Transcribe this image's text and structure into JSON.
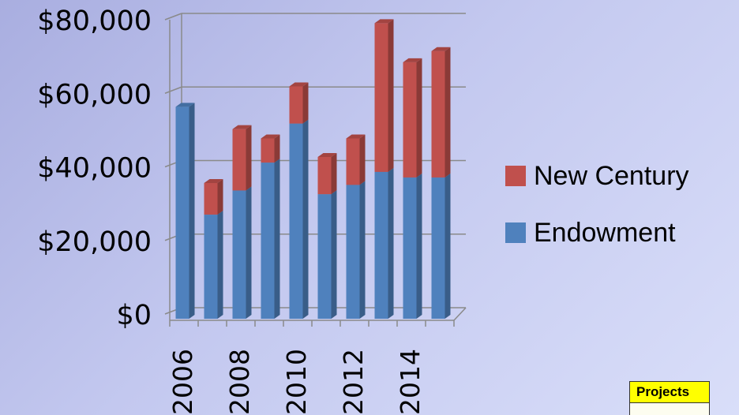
{
  "chart_data": {
    "type": "bar",
    "stacked": true,
    "three_d": true,
    "x": [
      2006,
      2007,
      2008,
      2009,
      2010,
      2011,
      2012,
      2013,
      2014,
      2015
    ],
    "x_tick_labels": [
      "2006",
      "2008",
      "2010",
      "2012",
      "2014"
    ],
    "y_tick_labels": [
      "$0",
      "$20,000",
      "$40,000",
      "$60,000",
      "$80,000"
    ],
    "ylim": [
      0,
      80000
    ],
    "grid": true,
    "legend_position": "right",
    "series": [
      {
        "name": "Endowment",
        "color": "#4f81bd",
        "values": [
          57000,
          28000,
          34500,
          42000,
          52500,
          33500,
          36000,
          39500,
          38000,
          38000
        ]
      },
      {
        "name": "New Century",
        "color": "#c0504d",
        "values": [
          0,
          8500,
          16500,
          6500,
          10000,
          10000,
          12500,
          40000,
          31000,
          34000
        ]
      }
    ],
    "xlabel": "",
    "ylabel": "",
    "title": ""
  },
  "legend": {
    "items": [
      {
        "label": "New Century",
        "color": "#c0504d"
      },
      {
        "label": "Endowment",
        "color": "#4f81bd"
      }
    ]
  },
  "projects_label": "Projects"
}
